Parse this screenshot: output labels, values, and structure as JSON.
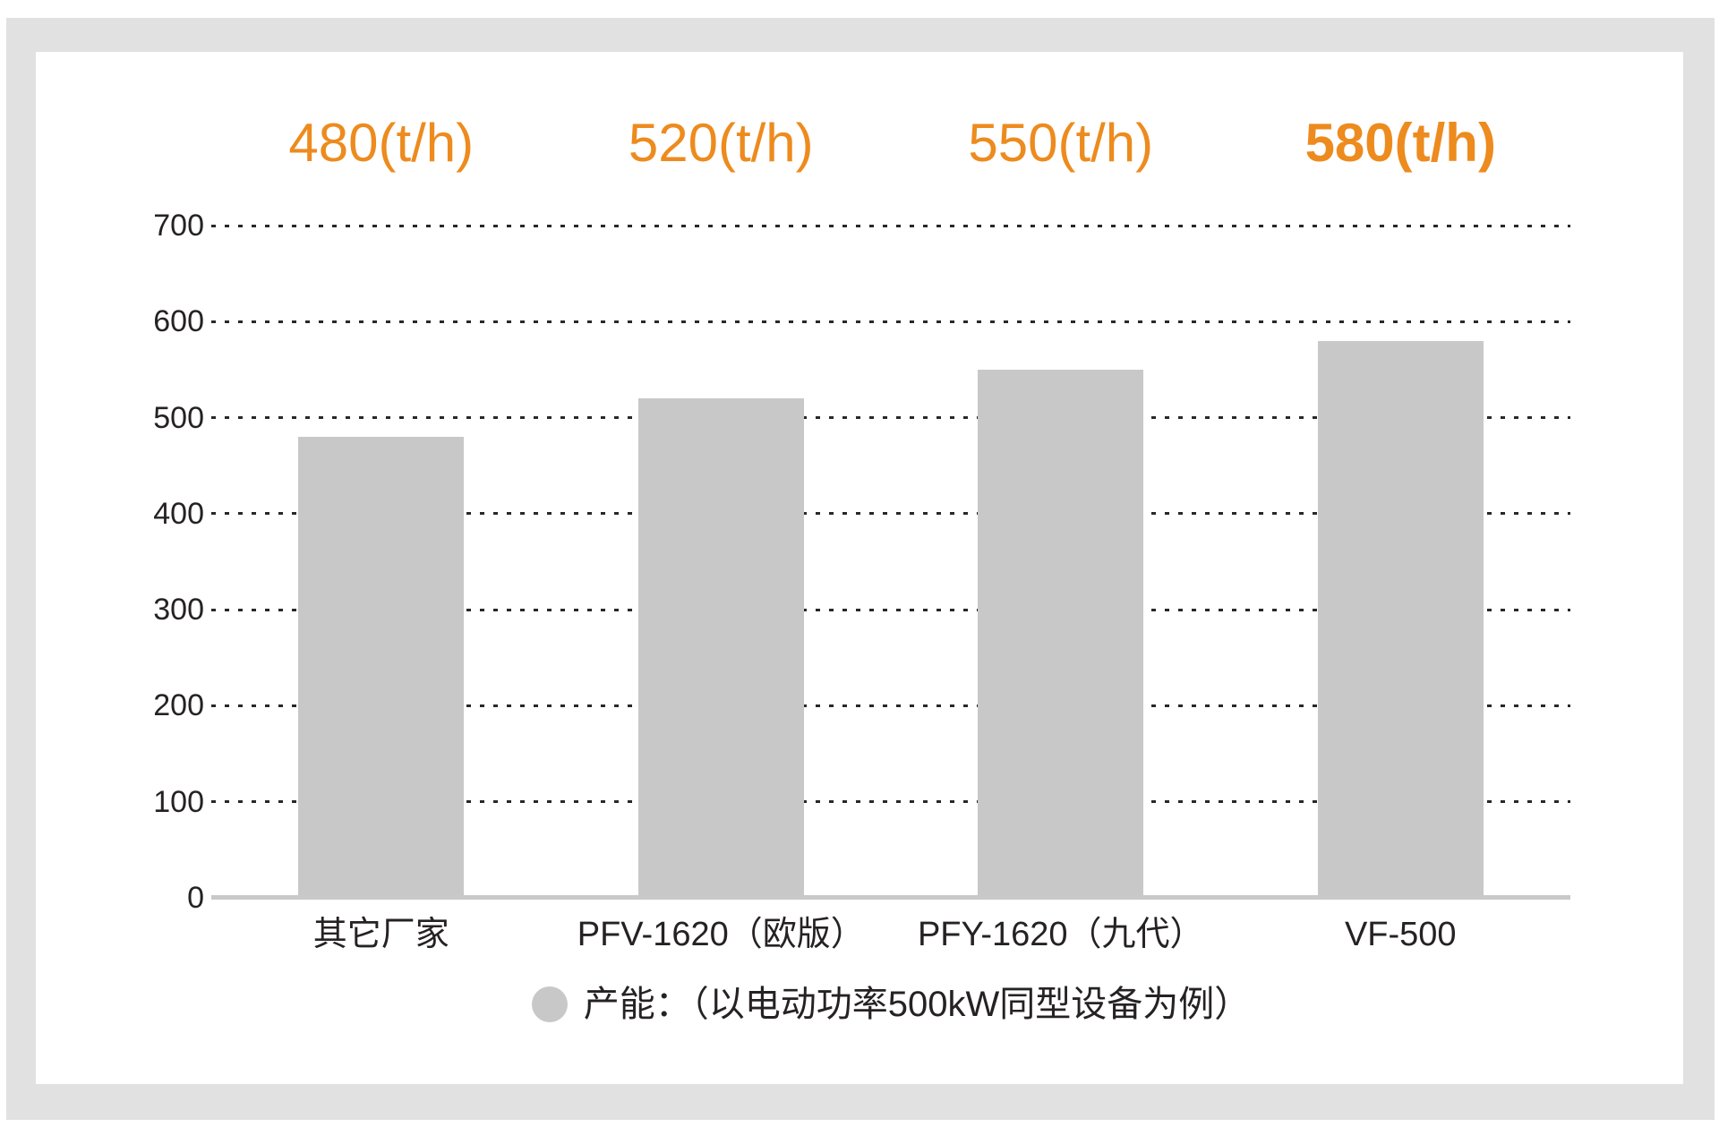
{
  "page": {
    "background": "#FFFFFF"
  },
  "frame": {
    "color": "#E1E1E1"
  },
  "chart_data": {
    "type": "bar",
    "title": "",
    "categories": [
      "其它厂家",
      "PFV-1620（欧版）",
      "PFY-1620（九代）",
      "VF-500"
    ],
    "values": [
      480,
      520,
      550,
      580
    ],
    "bar_value_labels": [
      "480(t/h)",
      "520(t/h)",
      "550(t/h)",
      "580(t/h)"
    ],
    "highlight_index": 3,
    "xlabel": "",
    "ylabel": "",
    "ylim": [
      0,
      700
    ],
    "yticks": [
      0,
      100,
      200,
      300,
      400,
      500,
      600,
      700
    ],
    "grid": "horizontal-dotted",
    "legend_position": "bottom-center",
    "legend_label": "产能：（以电动功率500kW同型设备为例）",
    "colors": {
      "bar": "#C8C8C8",
      "value_label": "#ED8B1E",
      "axis_text": "#262223",
      "grid_line": "#2B2627",
      "baseline": "#C9C9C9",
      "frame": "#E1E1E1",
      "legend_marker": "#C8C8C8"
    }
  }
}
